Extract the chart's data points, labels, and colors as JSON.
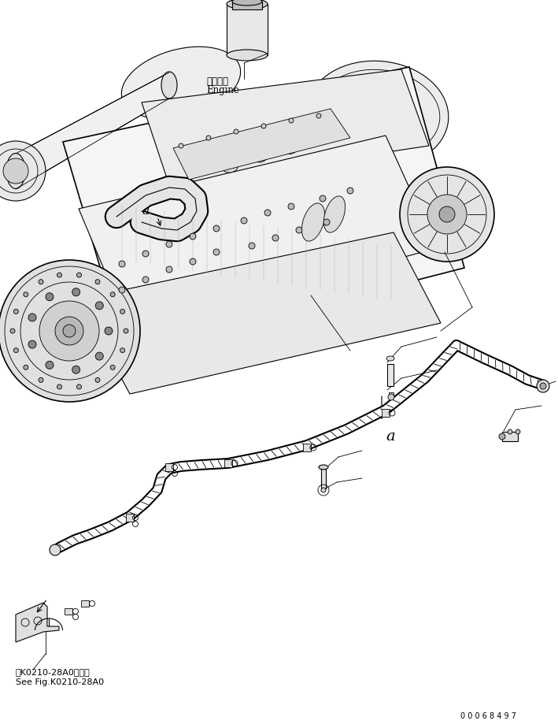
{
  "bg_color": "#ffffff",
  "line_color": "#000000",
  "fig_width": 7.09,
  "fig_height": 9.24,
  "dpi": 100,
  "label_engine_jp": "エンジン",
  "label_engine_en": "Engine",
  "label_a1": "a",
  "label_a2": "a",
  "label_see_jp": "第K0210-28A0図参照",
  "label_see_en": "See Fig.K0210-28A0",
  "label_serial": "0 0 0 6 8 4 9 7",
  "text_color": "#000000",
  "hose_stripe_color": "#000000",
  "detail_color": "#333333"
}
